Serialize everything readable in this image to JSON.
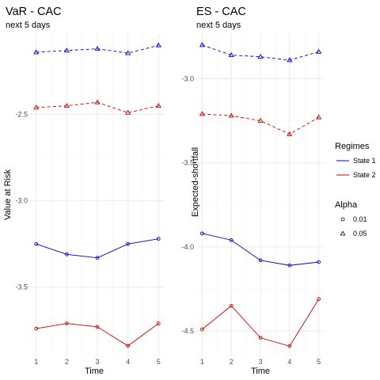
{
  "chart_data": [
    {
      "type": "line",
      "title": "VaR - CAC",
      "subtitle": "next 5 days",
      "xlabel": "Time",
      "ylabel": "Value at Risk",
      "x": [
        1,
        2,
        3,
        4,
        5
      ],
      "xlim": [
        0.8,
        5.2
      ],
      "ylim": [
        -3.9,
        -2.03
      ],
      "yticks": [
        -2.5,
        -3.0,
        -3.5
      ],
      "yticklabels": [
        "-2.5",
        "-3.0",
        "-3.5"
      ],
      "xticklabels": [
        "1",
        "2",
        "3",
        "4",
        "5"
      ],
      "grid": true,
      "series": [
        {
          "regime": "State 1",
          "alpha": "0.05",
          "values": [
            -2.14,
            -2.13,
            -2.12,
            -2.145,
            -2.1
          ]
        },
        {
          "regime": "State 2",
          "alpha": "0.05",
          "values": [
            -2.46,
            -2.45,
            -2.43,
            -2.49,
            -2.45
          ]
        },
        {
          "regime": "State 1",
          "alpha": "0.01",
          "values": [
            -3.25,
            -3.31,
            -3.33,
            -3.25,
            -3.22
          ]
        },
        {
          "regime": "State 2",
          "alpha": "0.01",
          "values": [
            -3.74,
            -3.71,
            -3.73,
            -3.84,
            -3.71
          ]
        }
      ]
    },
    {
      "type": "line",
      "title": "ES - CAC",
      "subtitle": "next 5 days",
      "xlabel": "Time",
      "ylabel": "Expected-shortfall",
      "x": [
        1,
        2,
        3,
        4,
        5
      ],
      "xlim": [
        0.8,
        5.2
      ],
      "ylim": [
        -4.65,
        -2.73
      ],
      "yticks": [
        -3.0,
        -3.5,
        -4.0,
        -4.5
      ],
      "yticklabels": [
        "-3.0",
        "-3.5",
        "-4.0",
        "-4.5"
      ],
      "xticklabels": [
        "1",
        "2",
        "3",
        "4",
        "5"
      ],
      "grid": true,
      "series": [
        {
          "regime": "State 1",
          "alpha": "0.05",
          "values": [
            -2.8,
            -2.86,
            -2.87,
            -2.89,
            -2.84
          ]
        },
        {
          "regime": "State 2",
          "alpha": "0.05",
          "values": [
            -3.21,
            -3.22,
            -3.25,
            -3.33,
            -3.23
          ]
        },
        {
          "regime": "State 1",
          "alpha": "0.01",
          "values": [
            -3.92,
            -3.96,
            -4.08,
            -4.11,
            -4.09
          ]
        },
        {
          "regime": "State 2",
          "alpha": "0.01",
          "values": [
            -4.49,
            -4.35,
            -4.54,
            -4.59,
            -4.31
          ]
        }
      ]
    }
  ],
  "legend": {
    "position": "right",
    "regimes_title": "Regimes",
    "regimes": [
      {
        "label": "State 1",
        "color": "#0000cc"
      },
      {
        "label": "State 2",
        "color": "#cc0000"
      }
    ],
    "alpha_title": "Alpha",
    "alpha": [
      {
        "label": "0.01",
        "shape": "circle",
        "linetype": "solid"
      },
      {
        "label": "0.05",
        "shape": "triangle",
        "linetype": "dashed"
      }
    ]
  }
}
